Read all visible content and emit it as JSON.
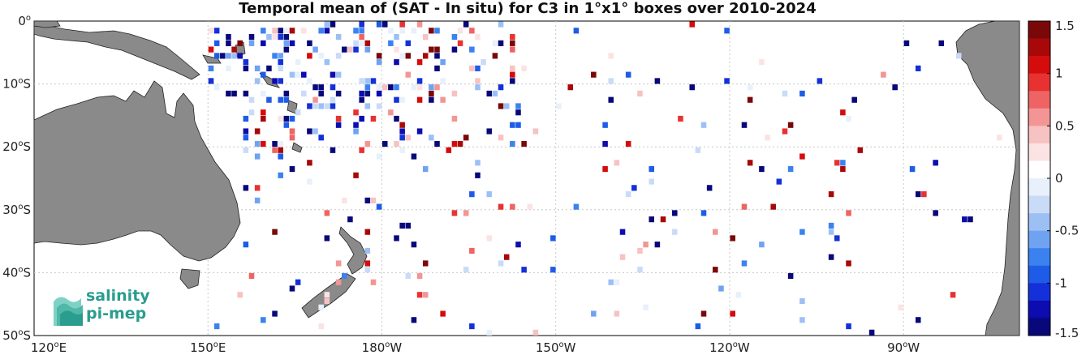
{
  "title": "Temporal mean of (SAT - In situ) for C3 in 1°x1° boxes over 2010-2024",
  "lat_labels": [
    "0",
    "10",
    "20",
    "30",
    "40",
    "50"
  ],
  "lat_suffix": "S",
  "lon_labels": [
    {
      "deg": "120",
      "hem": "E"
    },
    {
      "deg": "150",
      "hem": "E"
    },
    {
      "deg": "180",
      "hem": "W"
    },
    {
      "deg": "150",
      "hem": "W"
    },
    {
      "deg": "120",
      "hem": "W"
    },
    {
      "deg": "90",
      "hem": "W"
    }
  ],
  "colorbar": {
    "min": -1.5,
    "max": 1.5,
    "tick_labels": [
      "1.5",
      "1",
      "0.5",
      "0",
      "-0.5",
      "-1",
      "-1.5"
    ],
    "low_color": "#08087a",
    "mid_color": "#ffffff",
    "high_color": "#7a0808"
  },
  "logo": {
    "line1": "salinity",
    "line2": "pi-mep",
    "color": "#2a9d8f"
  },
  "colors": {
    "land": "#8a8a8a",
    "grid": "#c8c8c8"
  }
}
